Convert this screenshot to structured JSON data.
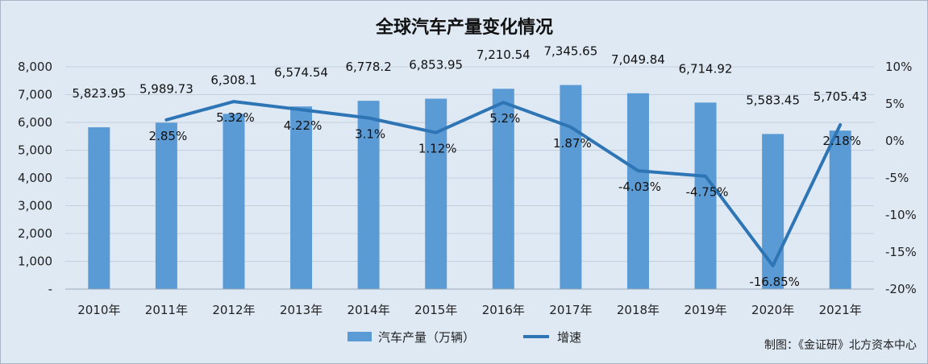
{
  "chart_data": {
    "type": "bar",
    "title": "全球汽车产量变化情况",
    "categories": [
      "2010年",
      "2011年",
      "2012年",
      "2013年",
      "2014年",
      "2015年",
      "2016年",
      "2017年",
      "2018年",
      "2019年",
      "2020年",
      "2021年"
    ],
    "series": [
      {
        "name": "汽车产量（万辆）",
        "type": "bar",
        "axis": "left",
        "color": "#5b9bd5",
        "values": [
          5823.95,
          5989.73,
          6308.1,
          6574.54,
          6778.2,
          6853.95,
          7210.54,
          7345.65,
          7049.84,
          6714.92,
          5583.45,
          5705.43
        ],
        "labels": [
          "5,823.95",
          "5,989.73",
          "6,308.1",
          "6,574.54",
          "6,778.2",
          "6,853.95",
          "7,210.54",
          "7,345.65",
          "7,049.84",
          "6,714.92",
          "5,583.45",
          "5,705.43"
        ]
      },
      {
        "name": "增速",
        "type": "line",
        "axis": "right",
        "color": "#2e75b6",
        "values": [
          null,
          2.85,
          5.32,
          4.22,
          3.1,
          1.12,
          5.2,
          1.87,
          -4.03,
          -4.75,
          -16.85,
          2.18
        ],
        "labels": [
          "",
          "2.85%",
          "5.32%",
          "4.22%",
          "3.1%",
          "1.12%",
          "5.2%",
          "1.87%",
          "-4.03%",
          "-4.75%",
          "-16.85%",
          "2.18%"
        ]
      }
    ],
    "y_left": {
      "min": 0,
      "max": 8000,
      "ticks": [
        0,
        1000,
        2000,
        3000,
        4000,
        5000,
        6000,
        7000,
        8000
      ],
      "tick_labels": [
        "-",
        "1,000",
        "2,000",
        "3,000",
        "4,000",
        "5,000",
        "6,000",
        "7,000",
        "8,000"
      ]
    },
    "y_right": {
      "min": -20,
      "max": 10,
      "ticks": [
        -20,
        -15,
        -10,
        -5,
        0,
        5,
        10
      ],
      "tick_labels": [
        "-20%",
        "-15%",
        "-10%",
        "-5%",
        "0%",
        "5%",
        "10%"
      ]
    },
    "grid": true,
    "legend_position": "bottom",
    "credit": "制图：《金证研》北方资本中心"
  }
}
